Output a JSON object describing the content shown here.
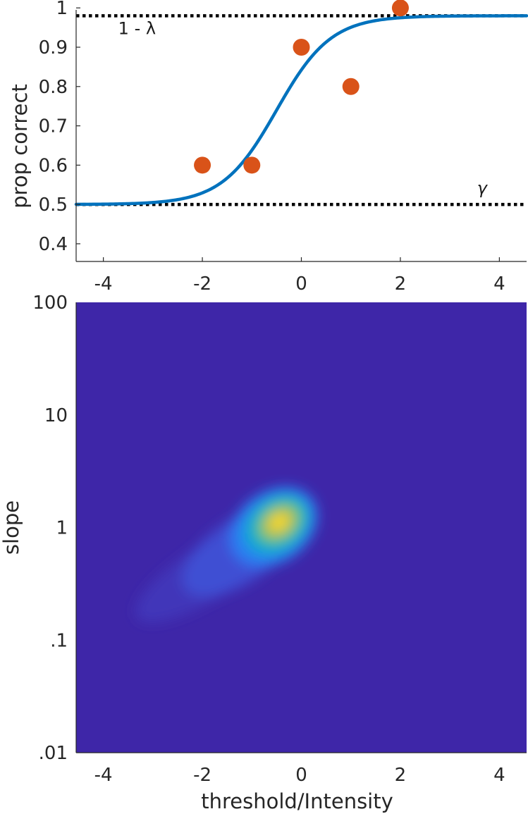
{
  "chart_data": [
    {
      "type": "line",
      "title": "",
      "xlabel": "",
      "ylabel": "prop correct",
      "xlim": [
        -4.55,
        4.55
      ],
      "ylim": [
        0.355,
        0.995
      ],
      "xticks": [
        -4,
        -2,
        0,
        2,
        4
      ],
      "xtick_labels": [
        "-4",
        "-2",
        "0",
        "2",
        "4"
      ],
      "yticks": [
        0.4,
        0.5,
        0.6,
        0.7,
        0.8,
        0.9,
        1
      ],
      "ytick_labels": [
        "0.4",
        "0.5",
        "0.6",
        "0.7",
        "0.8",
        "0.9",
        "1"
      ],
      "grid": false,
      "series": [
        {
          "kind": "psychometric-fit",
          "color": "#0072BD",
          "threshold": -0.5,
          "slope": 1.0,
          "guess_rate": 0.5,
          "lapse_rate": 0.02
        },
        {
          "kind": "scatter",
          "color": "#D95319",
          "x": [
            -2,
            -1,
            0,
            1,
            2
          ],
          "y": [
            0.6,
            0.6,
            0.9,
            0.8,
            1.0
          ]
        }
      ],
      "reference_lines": [
        {
          "y": 0.98,
          "style": "dotted",
          "color": "#000000",
          "label": "1 - λ",
          "label_x": -3.7
        },
        {
          "y": 0.5,
          "style": "dotted",
          "color": "#000000",
          "label": "γ",
          "label_x": 3.55
        }
      ]
    },
    {
      "type": "heatmap",
      "title": "",
      "xlabel": "threshold/Intensity",
      "ylabel": "slope",
      "xlim": [
        -4.55,
        4.55
      ],
      "ylim": [
        0.01,
        100
      ],
      "yscale": "log",
      "xticks": [
        -4,
        -2,
        0,
        2,
        4
      ],
      "xtick_labels": [
        "-4",
        "-2",
        "0",
        "2",
        "4"
      ],
      "yticks": [
        100,
        10,
        1,
        0.1,
        0.01
      ],
      "ytick_labels": [
        "100",
        "10",
        "1",
        ".1",
        ".01"
      ],
      "colormap": "parula",
      "background_color": "#3E26A8",
      "peak": {
        "threshold": -0.45,
        "slope": 1.1
      },
      "grid": false
    }
  ]
}
